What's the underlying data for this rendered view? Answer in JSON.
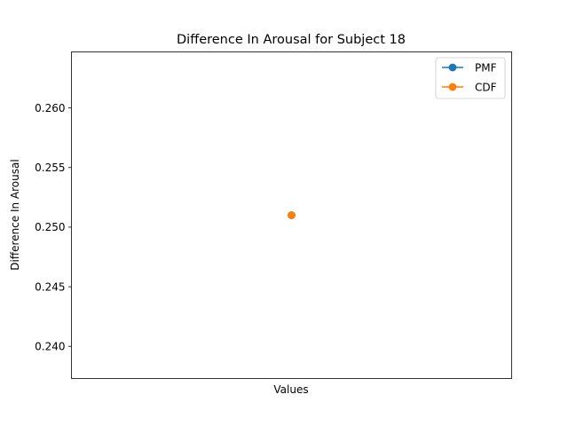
{
  "chart_data": {
    "type": "line",
    "title": "Difference In Arousal for Subject 18",
    "xlabel": "Values",
    "ylabel": "Difference In Arousal",
    "ylim": [
      0.2373,
      0.2647
    ],
    "yticks": [
      0.24,
      0.245,
      0.25,
      0.255,
      0.26
    ],
    "ytick_labels": [
      "0.240",
      "0.245",
      "0.250",
      "0.255",
      "0.260"
    ],
    "grid": false,
    "legend_position": "top-right",
    "x": [
      0
    ],
    "series": [
      {
        "name": "PMF",
        "color": "#1f77b4",
        "values": [
          0.251
        ]
      },
      {
        "name": "CDF",
        "color": "#ff7f0e",
        "values": [
          0.251
        ]
      }
    ]
  }
}
